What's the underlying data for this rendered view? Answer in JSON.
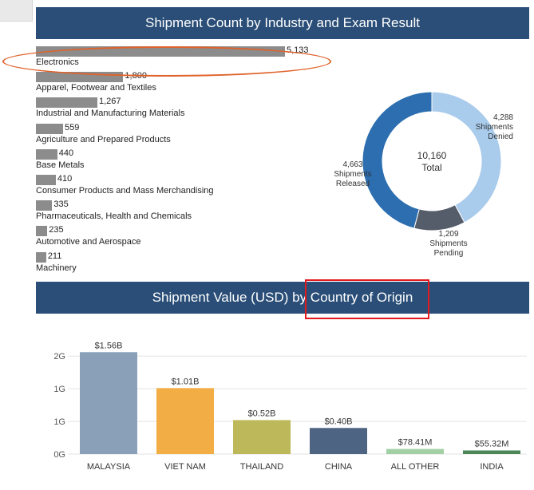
{
  "charts": {
    "industry": {
      "title": "Shipment Count by Industry and Exam Result"
    },
    "country": {
      "title": "Shipment Value (USD) by Country of Origin"
    }
  },
  "chart_data": [
    {
      "type": "bar",
      "orientation": "horizontal",
      "title": "Shipment Count by Industry and Exam Result",
      "categories": [
        "Electronics",
        "Apparel, Footwear and Textiles",
        "Industrial and Manufacturing Materials",
        "Agriculture and Prepared Products",
        "Base Metals",
        "Consumer Products and Mass Merchandising",
        "Pharmaceuticals, Health and Chemicals",
        "Automotive and Aerospace",
        "Machinery"
      ],
      "values": [
        5133,
        1800,
        1267,
        559,
        440,
        410,
        335,
        235,
        211
      ],
      "value_labels": [
        "5,133",
        "1,800",
        "1,267",
        "559",
        "440",
        "410",
        "335",
        "235",
        "211"
      ],
      "bar_color": "#8c8c8c"
    },
    {
      "type": "pie",
      "variant": "donut",
      "center_value": "10,160",
      "center_label": "Total",
      "slices": [
        {
          "name": "Shipments Denied",
          "value": 4288,
          "value_label": "4,288",
          "label_lines": [
            "Shipments",
            "Denied"
          ],
          "color": "#a9cbec"
        },
        {
          "name": "Shipments Pending",
          "value": 1209,
          "value_label": "1,209",
          "label_lines": [
            "Shipments",
            "Pending"
          ],
          "color": "#555d6a"
        },
        {
          "name": "Shipments Released",
          "value": 4663,
          "value_label": "4,663",
          "label_lines": [
            "Shipments",
            "Released"
          ],
          "color": "#2c6eaf"
        }
      ]
    },
    {
      "type": "bar",
      "title": "Shipment Value (USD) by Country of Origin",
      "categories": [
        "MALAYSIA",
        "VIET NAM",
        "THAILAND",
        "CHINA",
        "ALL OTHER",
        "INDIA"
      ],
      "values": [
        1.56,
        1.01,
        0.52,
        0.4,
        0.07841,
        0.05532
      ],
      "value_labels": [
        "$1.56B",
        "$1.01B",
        "$0.52B",
        "$0.40B",
        "$78.41M",
        "$55.32M"
      ],
      "colors": [
        "#8aa0b8",
        "#f2ae45",
        "#bdb85a",
        "#4e6483",
        "#a2d0a4",
        "#4c8659"
      ],
      "y_ticks": [
        {
          "value": 1.5,
          "label": "2G"
        },
        {
          "value": 1.0,
          "label": "1G"
        },
        {
          "value": 0.5,
          "label": "1G"
        },
        {
          "value": 0.0,
          "label": "0G"
        }
      ],
      "ylim": [
        0,
        1.6
      ]
    }
  ]
}
